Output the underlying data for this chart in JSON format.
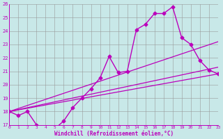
{
  "xlabel": "Windchill (Refroidissement éolien,°C)",
  "xlim": [
    0,
    23
  ],
  "ylim": [
    17,
    26
  ],
  "yticks": [
    17,
    18,
    19,
    20,
    21,
    22,
    23,
    24,
    25,
    26
  ],
  "xticks": [
    0,
    1,
    2,
    3,
    4,
    5,
    6,
    7,
    8,
    9,
    10,
    11,
    12,
    13,
    14,
    15,
    16,
    17,
    18,
    19,
    20,
    21,
    22,
    23
  ],
  "bg_color": "#c8e8e8",
  "grid_color": "#999999",
  "line_color": "#bb00bb",
  "main_series": {
    "x": [
      0,
      1,
      2,
      3,
      4,
      5,
      6,
      7,
      8,
      9,
      10,
      11,
      12,
      13,
      14,
      15,
      16,
      17,
      18,
      19,
      20,
      21,
      22,
      23
    ],
    "y": [
      18.0,
      17.7,
      18.0,
      17.0,
      16.8,
      16.7,
      17.3,
      18.3,
      19.0,
      19.7,
      20.5,
      22.1,
      20.9,
      21.0,
      24.1,
      24.5,
      25.3,
      25.3,
      25.8,
      23.5,
      23.0,
      21.8,
      21.1,
      20.8
    ],
    "marker": "D",
    "markersize": 2.5,
    "linewidth": 1.0
  },
  "ref_lines": [
    {
      "x0": 0,
      "y0": 18.0,
      "x1": 23,
      "y1": 20.8,
      "linewidth": 0.9
    },
    {
      "x0": 0,
      "y0": 18.0,
      "x1": 23,
      "y1": 21.3,
      "linewidth": 0.9
    },
    {
      "x0": 0,
      "y0": 18.0,
      "x1": 23,
      "y1": 23.2,
      "linewidth": 0.9
    }
  ]
}
